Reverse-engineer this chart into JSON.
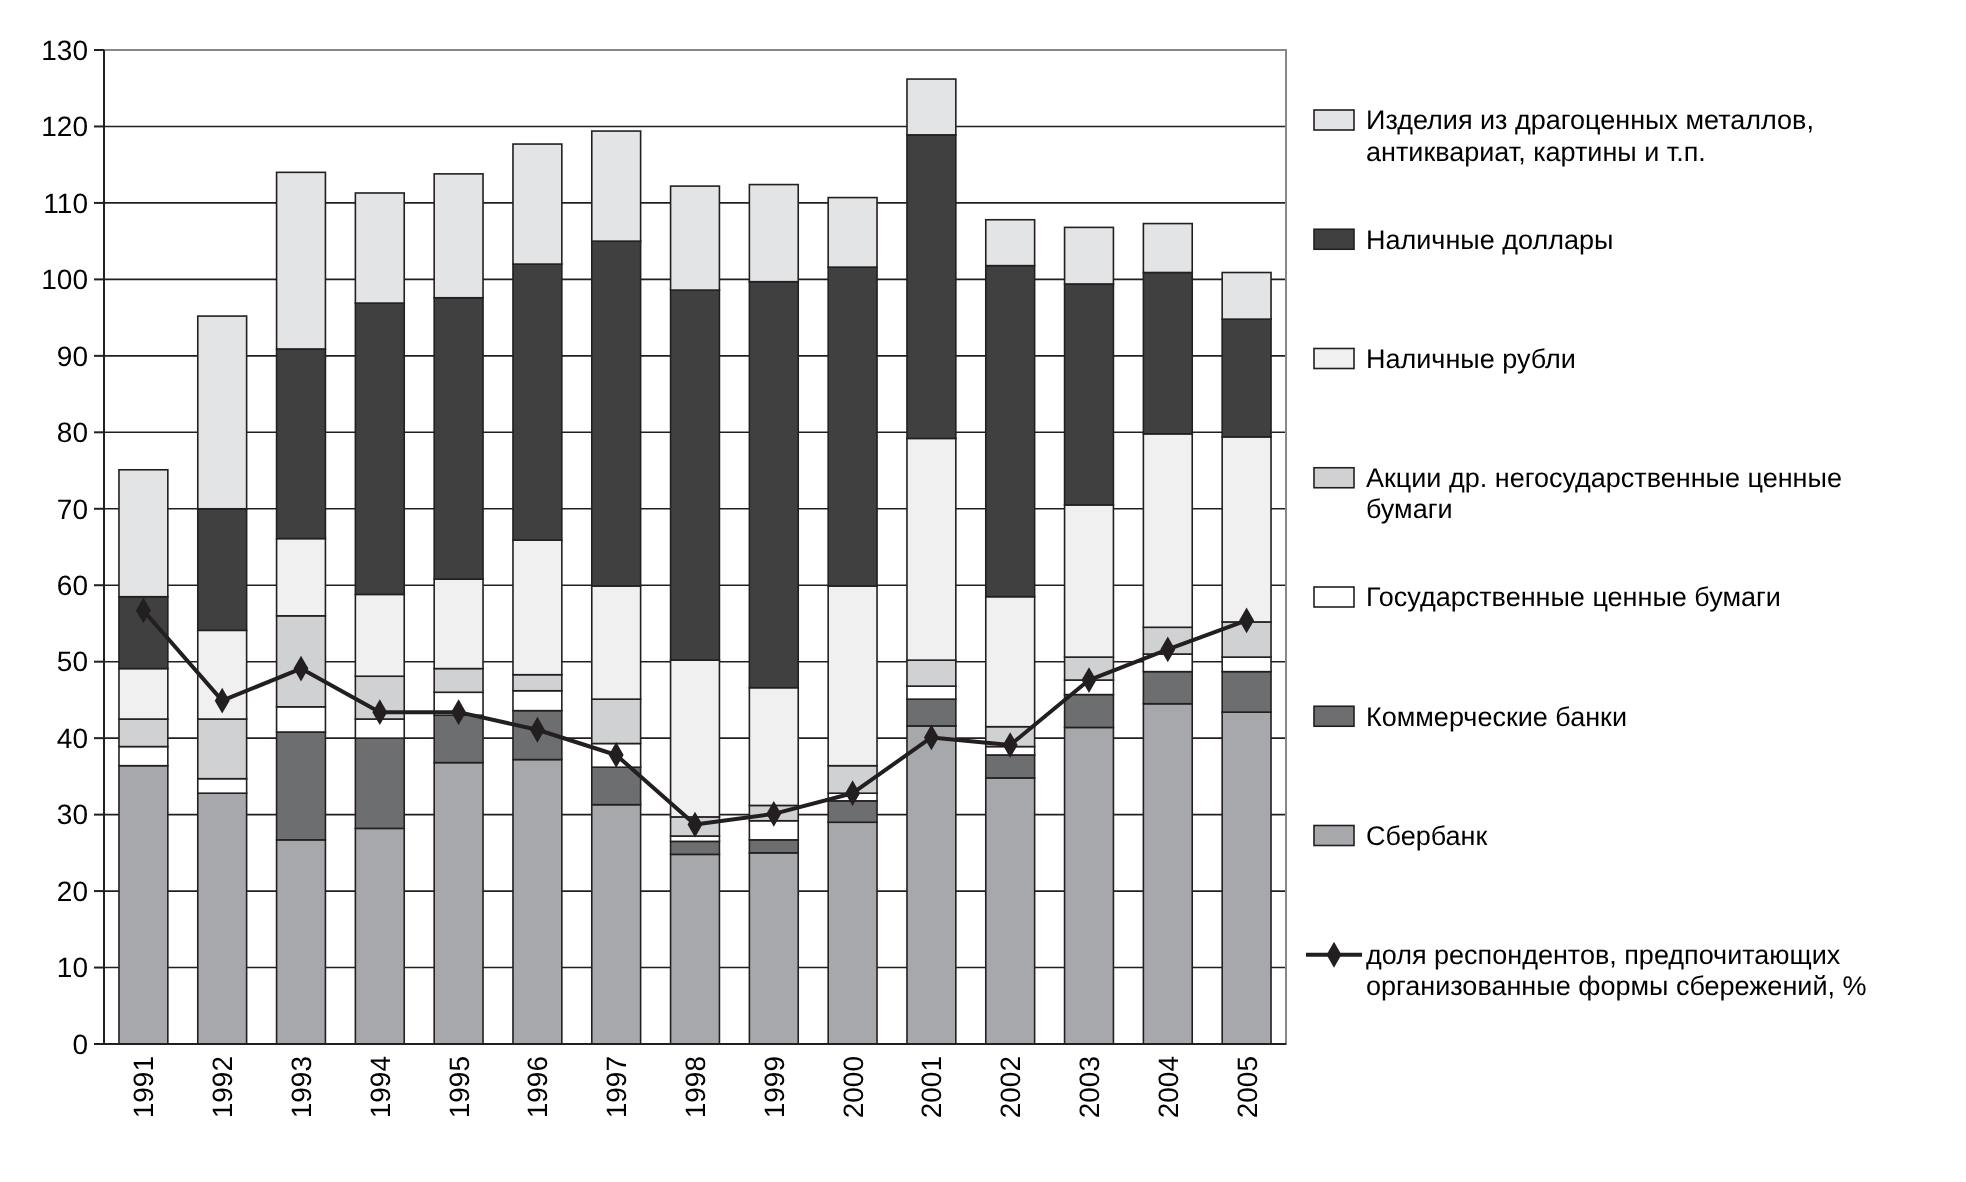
{
  "chart_data": {
    "type": "bar",
    "stacked": true,
    "legend": "right",
    "grid": "y",
    "marker": "diamond",
    "line_style": "solid",
    "categories": [
      "1991",
      "1992",
      "1993",
      "1994",
      "1995",
      "1996",
      "1997",
      "1998",
      "1999",
      "2000",
      "2001",
      "2002",
      "2003",
      "2004",
      "2005"
    ],
    "ylim": [
      0,
      130
    ],
    "yticks": [
      0,
      10,
      20,
      30,
      40,
      50,
      60,
      70,
      80,
      90,
      100,
      110,
      120,
      130
    ],
    "series": [
      {
        "name": "Сбербанк",
        "color": "#a7a8ab",
        "values": [
          36.4,
          32.8,
          26.7,
          28.2,
          36.8,
          37.2,
          31.3,
          24.8,
          25.0,
          29.0,
          41.6,
          34.8,
          41.4,
          44.5,
          43.4
        ]
      },
      {
        "name": "Коммерческие банки",
        "color": "#6d6e70",
        "values": [
          0,
          0,
          14.1,
          11.8,
          6.2,
          6.4,
          4.9,
          1.7,
          1.7,
          2.8,
          3.5,
          3.0,
          4.3,
          4.2,
          5.3
        ]
      },
      {
        "name": "Государственные ценные бумаги",
        "color": "#ffffff",
        "values": [
          2.5,
          1.9,
          3.3,
          2.5,
          3.0,
          2.6,
          3.1,
          0.7,
          2.5,
          1.0,
          1.7,
          1.1,
          1.9,
          2.3,
          1.9
        ]
      },
      {
        "name": "Акции  др. негосударственные ценные бумаги",
        "color": "#d0d1d3",
        "values": [
          3.6,
          7.8,
          11.9,
          5.6,
          3.1,
          2.1,
          5.8,
          2.5,
          2.0,
          3.6,
          3.4,
          2.6,
          3.0,
          3.5,
          4.6
        ]
      },
      {
        "name": "Наличные рубли",
        "color": "#f0f0f0",
        "values": [
          6.6,
          11.6,
          10.1,
          10.7,
          11.7,
          17.6,
          14.8,
          20.5,
          15.4,
          23.5,
          29.0,
          17.0,
          19.9,
          25.3,
          24.2
        ]
      },
      {
        "name": "Наличные доллары",
        "color": "#404041",
        "values": [
          9.4,
          15.9,
          24.8,
          38.1,
          36.8,
          36.1,
          45.1,
          48.4,
          53.1,
          41.7,
          39.7,
          43.3,
          28.9,
          21.1,
          15.4
        ]
      },
      {
        "name": "Изделия из драгоценных металлов, антиквариат, картины и т.п.",
        "color": "#e3e4e6",
        "values": [
          16.6,
          25.2,
          23.1,
          14.4,
          16.2,
          15.7,
          14.4,
          13.6,
          12.7,
          9.1,
          7.3,
          6.0,
          7.4,
          6.4,
          6.1
        ]
      },
      {
        "name": "доля респондентов, предпочитающих организованные формы сбережений, %",
        "type": "line",
        "color": "#231f20",
        "values": [
          56.7,
          44.9,
          49.1,
          43.4,
          43.4,
          41.1,
          37.8,
          28.7,
          30.1,
          32.8,
          40.1,
          39.1,
          47.6,
          51.6,
          55.4
        ]
      }
    ]
  }
}
